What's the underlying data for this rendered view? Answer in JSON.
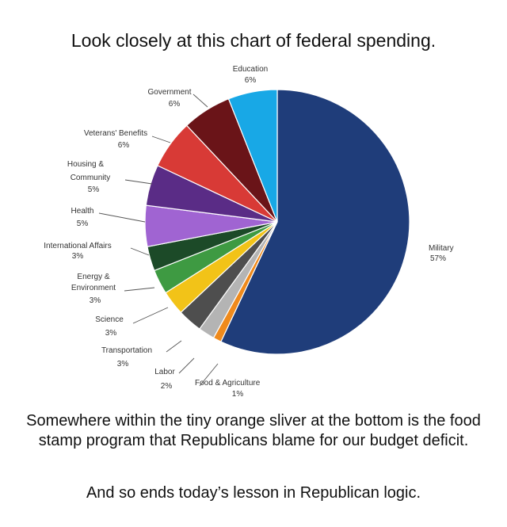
{
  "header": {
    "text": "Look closely at this chart of federal spending."
  },
  "footer": {
    "caption": "Somewhere within the tiny orange sliver at the bottom is the food stamp program that Republicans blame for our budget deficit.",
    "punchline": "And so ends today’s lesson in Republican logic."
  },
  "chart_data": {
    "type": "pie",
    "title": "",
    "slices": [
      {
        "label": "Military",
        "value": 57,
        "pct_label": "57%",
        "color": "#1f3d7a"
      },
      {
        "label": "Food & Agriculture",
        "value": 1,
        "pct_label": "1%",
        "color": "#ef8a1c"
      },
      {
        "label": "Labor",
        "value": 2,
        "pct_label": "2%",
        "color": "#b4b4b4"
      },
      {
        "label": "Transportation",
        "value": 3,
        "pct_label": "3%",
        "color": "#4e4e4e"
      },
      {
        "label": "Science",
        "value": 3,
        "pct_label": "3%",
        "color": "#f2c318"
      },
      {
        "label": "Energy & Environment",
        "value": 3,
        "pct_label": "3%",
        "color": "#3e9a42"
      },
      {
        "label": "International Affairs",
        "value": 3,
        "pct_label": "3%",
        "color": "#1c4a28"
      },
      {
        "label": "Health",
        "value": 5,
        "pct_label": "5%",
        "color": "#a064d2"
      },
      {
        "label": "Housing & Community",
        "value": 5,
        "pct_label": "5%",
        "color": "#5a2c86"
      },
      {
        "label": "Veterans' Benefits",
        "value": 6,
        "pct_label": "6%",
        "color": "#d83a36"
      },
      {
        "label": "Government",
        "value": 6,
        "pct_label": "6%",
        "color": "#6a1418"
      },
      {
        "label": "Education",
        "value": 6,
        "pct_label": "6%",
        "color": "#18a8e6"
      }
    ]
  }
}
